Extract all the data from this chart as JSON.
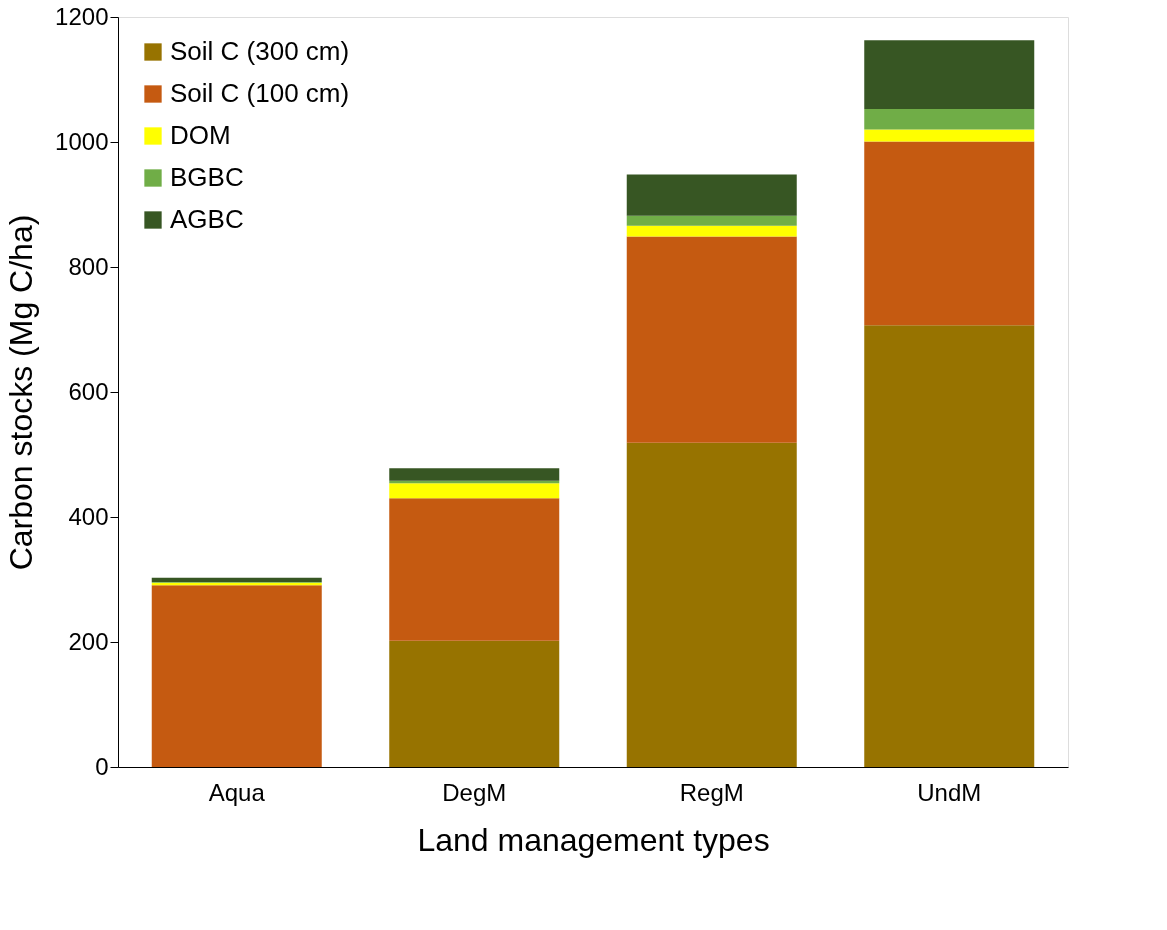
{
  "chart_data": {
    "type": "bar",
    "stacked": true,
    "xlabel": "Land management types",
    "ylabel": "Carbon stocks (Mg C/ha)",
    "categories": [
      "Aqua",
      "DegM",
      "RegM",
      "UndM"
    ],
    "series": [
      {
        "name": "Soil C (300 cm)",
        "color": "#977300",
        "values": [
          0,
          202,
          519,
          707
        ]
      },
      {
        "name": "Soil C (100 cm)",
        "color": "#c55a11",
        "values": [
          291,
          228,
          330,
          294
        ]
      },
      {
        "name": "DOM",
        "color": "#ffff00",
        "values": [
          4,
          24,
          17,
          19
        ]
      },
      {
        "name": "BGBC",
        "color": "#70ad47",
        "values": [
          1,
          4,
          16,
          33
        ]
      },
      {
        "name": "AGBC",
        "color": "#375623",
        "values": [
          7,
          20,
          66,
          110
        ]
      }
    ],
    "ylim": [
      0,
      1200
    ],
    "yticks": [
      0,
      200,
      400,
      600,
      800,
      1000,
      1200
    ],
    "grid": false,
    "legend": "top left"
  }
}
